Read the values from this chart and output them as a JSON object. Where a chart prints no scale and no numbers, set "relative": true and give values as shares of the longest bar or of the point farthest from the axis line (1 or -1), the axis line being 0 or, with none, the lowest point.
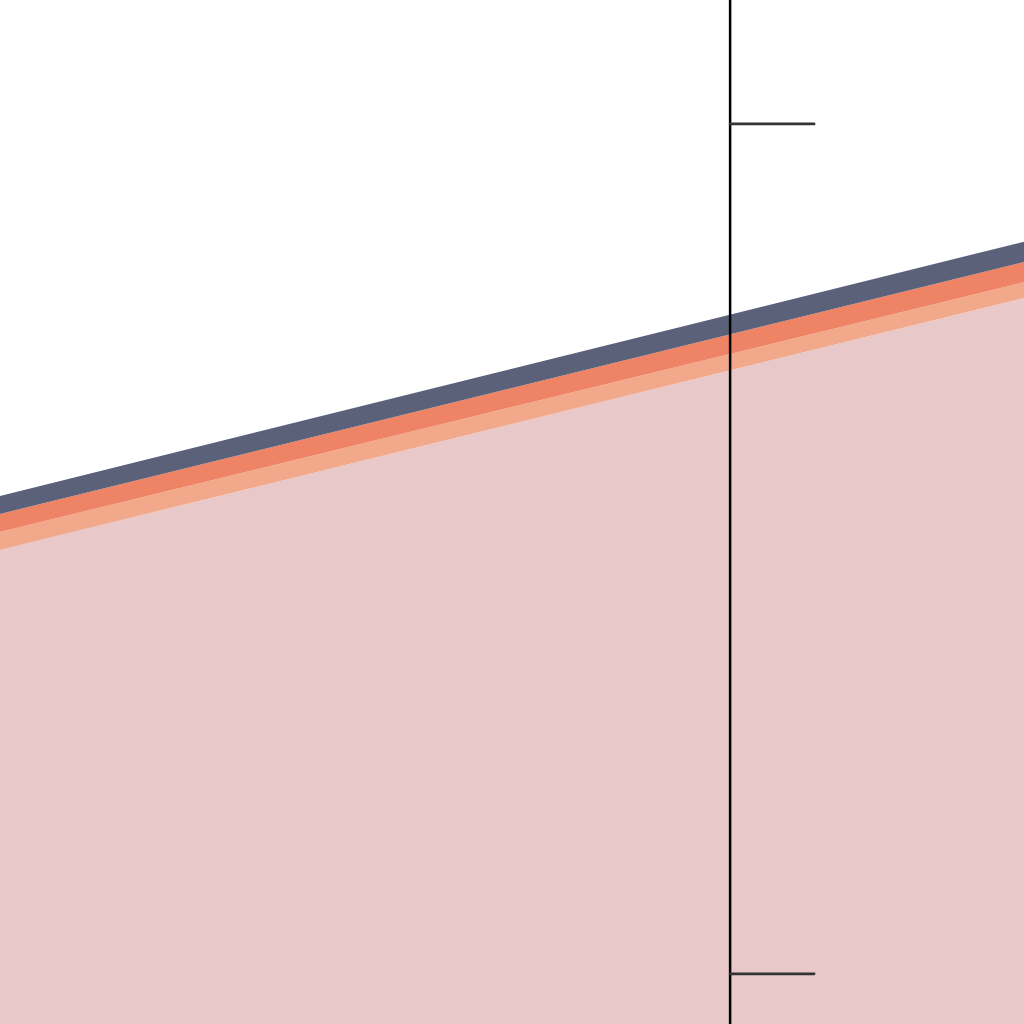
{
  "chart_data": {
    "type": "area",
    "stacked": true,
    "relative": true,
    "categories": [
      null,
      null
    ],
    "series": [
      {
        "color": "#e8c8c8",
        "values": [
          0.606,
          0.928
        ]
      },
      {
        "color": "#f2a98b",
        "values": [
          0.023,
          0.02
        ]
      },
      {
        "color": "#ee8465",
        "values": [
          0.023,
          0.026
        ]
      },
      {
        "color": "#5b6179",
        "values": [
          0.023,
          0.026
        ]
      }
    ]
  }
}
